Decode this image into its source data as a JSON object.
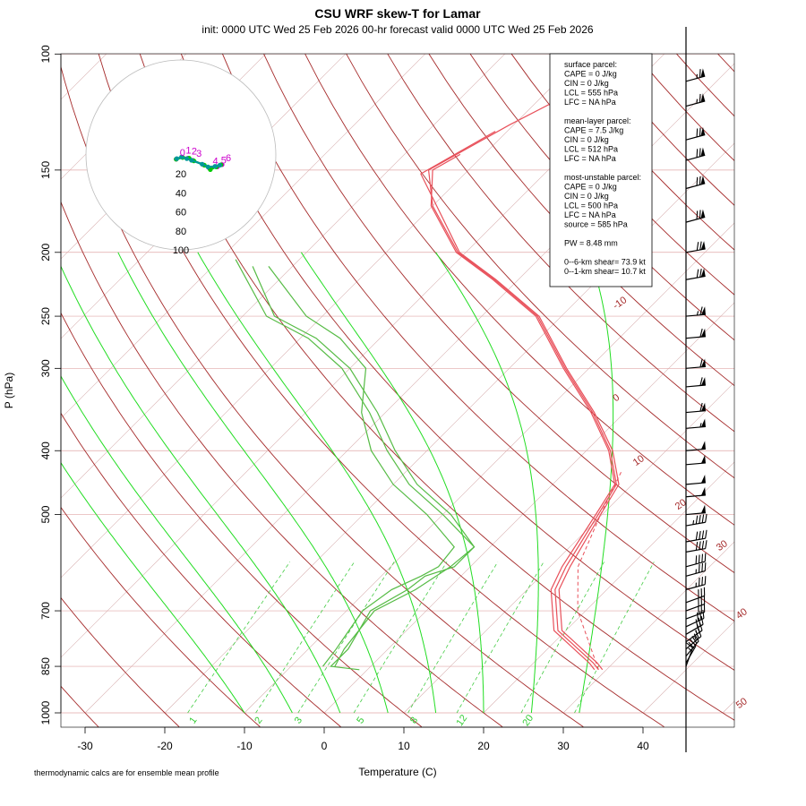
{
  "header": {
    "title": "CSU WRF skew-T for Lamar",
    "subtitle": "init: 0000 UTC Wed 25 Feb 2026     00-hr forecast valid 0000 UTC Wed 25 Feb 2026"
  },
  "footnote": "thermodynamic calcs are for ensemble mean profile",
  "chart_data": {
    "type": "line",
    "xlabel": "Temperature (C)",
    "ylabel": "P (hPa)",
    "xlim": [
      -33,
      51
    ],
    "ylim": [
      1000,
      100
    ],
    "x_ticks": [
      "-30",
      "-20",
      "-10",
      "0",
      "10",
      "20",
      "30",
      "40"
    ],
    "x_tick_values": [
      -30,
      -20,
      -10,
      0,
      10,
      20,
      30,
      40
    ],
    "p_ticks": [
      "100",
      "150",
      "200",
      "250",
      "300",
      "400",
      "500",
      "700",
      "850",
      "1000"
    ],
    "p_tick_values": [
      100,
      150,
      200,
      250,
      300,
      400,
      500,
      700,
      850,
      1000
    ],
    "dry_adiabat_labels": [
      "-10",
      "0",
      "10",
      "20",
      "30",
      "40",
      "50"
    ],
    "mixing_ratio_labels": [
      "1",
      "2",
      "3",
      "5",
      "8",
      "12",
      "20"
    ],
    "temperature_profiles": [
      [
        [
          29.0,
          860
        ],
        [
          27.5,
          840
        ],
        [
          19.0,
          750
        ],
        [
          13.5,
          650
        ],
        [
          12.0,
          600
        ],
        [
          9.5,
          500
        ],
        [
          8.0,
          450
        ],
        [
          3.0,
          400
        ],
        [
          -4.0,
          350
        ],
        [
          -13.0,
          300
        ],
        [
          -23.0,
          250
        ],
        [
          -33.0,
          220
        ],
        [
          -41.0,
          200
        ],
        [
          -50.0,
          170
        ],
        [
          -55.0,
          150
        ],
        [
          -50.5,
          128
        ],
        [
          -46.0,
          112
        ]
      ],
      [
        [
          29.5,
          860
        ],
        [
          28.0,
          840
        ],
        [
          19.5,
          750
        ],
        [
          14.0,
          650
        ],
        [
          12.5,
          600
        ],
        [
          9.8,
          500
        ],
        [
          8.3,
          450
        ],
        [
          3.3,
          400
        ],
        [
          -3.8,
          350
        ],
        [
          -12.8,
          300
        ],
        [
          -22.8,
          250
        ],
        [
          -32.8,
          220
        ],
        [
          -40.8,
          200
        ],
        [
          -49.5,
          170
        ],
        [
          -55.5,
          152
        ],
        [
          -51.5,
          131
        ]
      ],
      [
        [
          28.5,
          860
        ],
        [
          27.0,
          840
        ],
        [
          18.5,
          750
        ],
        [
          13.0,
          650
        ],
        [
          11.5,
          600
        ],
        [
          9.2,
          500
        ],
        [
          7.8,
          450
        ],
        [
          2.8,
          400
        ],
        [
          -4.2,
          350
        ],
        [
          -13.2,
          300
        ],
        [
          -23.2,
          250
        ],
        [
          -33.2,
          220
        ],
        [
          -41.2,
          200
        ],
        [
          -50.2,
          170
        ],
        [
          -54.5,
          150
        ],
        [
          -53.0,
          142
        ]
      ]
    ],
    "parcel_trace": [
      [
        29.0,
        860
      ],
      [
        19.0,
        700
      ],
      [
        13.5,
        600
      ],
      [
        9.8,
        500
      ],
      [
        7.0,
        430
      ]
    ],
    "dewpoint_profiles": [
      [
        [
          -1.0,
          860
        ],
        [
          -5.0,
          850
        ],
        [
          -5.0,
          800
        ],
        [
          -7.0,
          700
        ],
        [
          -5.0,
          650
        ],
        [
          -4.5,
          620
        ],
        [
          -2.0,
          600
        ],
        [
          -2.0,
          560
        ],
        [
          -10.0,
          500
        ],
        [
          -18.0,
          450
        ],
        [
          -25.0,
          400
        ],
        [
          -32.0,
          350
        ],
        [
          -41.0,
          300
        ],
        [
          -49.0,
          270
        ],
        [
          -57.0,
          250
        ],
        [
          -68.0,
          205
        ]
      ],
      [
        [
          -4.5,
          850
        ],
        [
          -5.5,
          800
        ],
        [
          -6.5,
          700
        ],
        [
          -4.0,
          650
        ],
        [
          -2.5,
          600
        ],
        [
          -2.0,
          560
        ],
        [
          -9.0,
          500
        ],
        [
          -17.0,
          450
        ],
        [
          -24.0,
          400
        ],
        [
          -31.0,
          350
        ],
        [
          -40.0,
          300
        ],
        [
          -48.0,
          270
        ],
        [
          -56.0,
          250
        ],
        [
          -65.0,
          210
        ]
      ],
      [
        [
          -6.0,
          850
        ],
        [
          -6.5,
          800
        ],
        [
          -8.0,
          700
        ],
        [
          -7.0,
          650
        ],
        [
          -5.0,
          620
        ],
        [
          -4.0,
          600
        ],
        [
          -4.5,
          560
        ],
        [
          -12.0,
          500
        ],
        [
          -20.0,
          450
        ],
        [
          -27.0,
          400
        ],
        [
          -33.0,
          350
        ],
        [
          -38.0,
          300
        ],
        [
          -45.0,
          270
        ],
        [
          -52.0,
          250
        ],
        [
          -63.0,
          210
        ]
      ]
    ],
    "hodograph": {
      "ring_labels": [
        "20",
        "40",
        "60",
        "80",
        "100"
      ],
      "ring_values": [
        20,
        40,
        60,
        80,
        100
      ],
      "point_labels": [
        "0",
        "1",
        "2",
        "3",
        "4",
        "5",
        "6"
      ],
      "tracks": [
        {
          "color": "#cc00cc",
          "points": [
            [
              -8,
              -2
            ],
            [
              2,
              -6
            ],
            [
              12,
              -4
            ],
            [
              20,
              0
            ],
            [
              38,
              8
            ],
            [
              48,
              14
            ],
            [
              62,
              12
            ],
            [
              70,
              8
            ]
          ]
        },
        {
          "color": "#00cc00",
          "points": [
            [
              -8,
              -2
            ],
            [
              3,
              -5
            ],
            [
              14,
              -4
            ],
            [
              22,
              1
            ],
            [
              40,
              9
            ],
            [
              50,
              17
            ],
            [
              60,
              12
            ],
            [
              68,
              8
            ]
          ]
        },
        {
          "color": "#009999",
          "points": [
            [
              -7,
              -3
            ],
            [
              1,
              -6
            ],
            [
              10,
              -3
            ],
            [
              18,
              0
            ],
            [
              36,
              7
            ],
            [
              46,
              12
            ],
            [
              58,
              11
            ],
            [
              66,
              9
            ]
          ]
        }
      ]
    },
    "wind_barbs_kt": [
      [
        850,
        15,
        200
      ],
      [
        840,
        20,
        210
      ],
      [
        820,
        22,
        220
      ],
      [
        800,
        25,
        230
      ],
      [
        780,
        26,
        235
      ],
      [
        760,
        28,
        240
      ],
      [
        740,
        28,
        245
      ],
      [
        720,
        30,
        250
      ],
      [
        700,
        32,
        250
      ],
      [
        680,
        30,
        250
      ],
      [
        650,
        35,
        255
      ],
      [
        620,
        35,
        255
      ],
      [
        600,
        38,
        255
      ],
      [
        570,
        40,
        260
      ],
      [
        550,
        42,
        260
      ],
      [
        520,
        45,
        260
      ],
      [
        500,
        48,
        265
      ],
      [
        470,
        48,
        265
      ],
      [
        450,
        50,
        265
      ],
      [
        420,
        52,
        265
      ],
      [
        400,
        52,
        265
      ],
      [
        370,
        55,
        265
      ],
      [
        350,
        58,
        265
      ],
      [
        320,
        58,
        265
      ],
      [
        300,
        60,
        265
      ],
      [
        270,
        62,
        265
      ],
      [
        250,
        65,
        265
      ],
      [
        220,
        68,
        260
      ],
      [
        200,
        70,
        260
      ],
      [
        180,
        70,
        255
      ],
      [
        160,
        72,
        255
      ],
      [
        145,
        70,
        255
      ],
      [
        135,
        68,
        255
      ],
      [
        120,
        65,
        255
      ],
      [
        110,
        65,
        255
      ]
    ]
  },
  "legend": {
    "lines": [
      "surface parcel:",
      "CAPE = 0 J/kg",
      "CIN = 0 J/kg",
      "LCL = 555 hPa",
      "LFC = NA hPa",
      "",
      "mean-layer parcel:",
      "CAPE = 7.5 J/kg",
      "CIN = 0 J/kg",
      "LCL = 512 hPa",
      "LFC = NA hPa",
      "",
      "most-unstable parcel:",
      "CAPE = 0 J/kg",
      "CIN = 0 J/kg",
      "LCL = 500 hPa",
      "LFC = NA hPa",
      "source = 585 hPa",
      "",
      "PW =  8.48 mm",
      "",
      "0--6-km shear= 73.9 kt",
      "0--1-km shear= 10.7 kt"
    ]
  },
  "colors": {
    "temperature": "#e8505a",
    "dewpoint": "#55bb44",
    "isotherm": "#d8b0b0",
    "isobar": "#e0a8a8",
    "dry_adiabat": "#a52a2a",
    "moist_adiabat": "#22dd22",
    "mixing_ratio": "#44cc44"
  }
}
